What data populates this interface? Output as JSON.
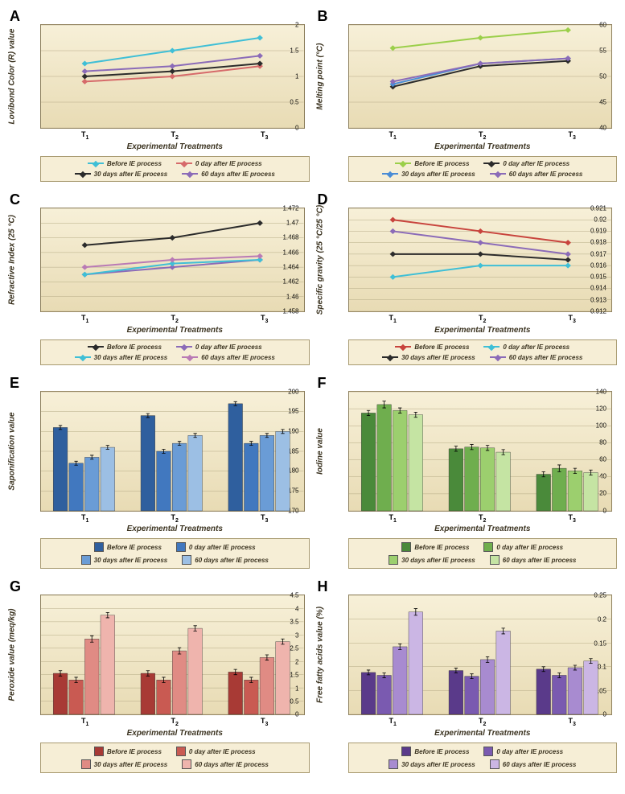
{
  "panels": {
    "A": {
      "label": "A",
      "type": "line",
      "ylabel": "Lovibond Color (R) value",
      "xlabel": "Experimental Treatments",
      "ylim": [
        0,
        2
      ],
      "yticks": [
        0,
        0.5,
        1,
        1.5,
        2
      ],
      "categories": [
        "T₁",
        "T₂",
        "T₃"
      ],
      "series": [
        {
          "name": "Before IE process",
          "color": "#3fbfd6",
          "marker": "x",
          "values": [
            1.25,
            1.5,
            1.75
          ]
        },
        {
          "name": "0 day after IE process",
          "color": "#d66a6a",
          "marker": "square",
          "values": [
            0.9,
            1.0,
            1.2
          ]
        },
        {
          "name": "30 days after IE process",
          "color": "#2b2b2b",
          "marker": "square",
          "values": [
            1.0,
            1.1,
            1.25
          ]
        },
        {
          "name": "60 days after IE process",
          "color": "#8b6bb8",
          "marker": "x",
          "values": [
            1.1,
            1.2,
            1.4
          ]
        }
      ]
    },
    "B": {
      "label": "B",
      "type": "line",
      "ylabel": "Melting point (°C)",
      "xlabel": "Experimental Treatments",
      "ylim": [
        40,
        60
      ],
      "yticks": [
        40,
        45,
        50,
        55,
        60
      ],
      "categories": [
        "T₁",
        "T₂",
        "T₃"
      ],
      "series": [
        {
          "name": "Before IE process",
          "color": "#9bcf4a",
          "marker": "diamond",
          "values": [
            55.5,
            57.5,
            59.0
          ]
        },
        {
          "name": "0 day after IE process",
          "color": "#2b2b2b",
          "marker": "square",
          "values": [
            48.0,
            52.0,
            53.0
          ]
        },
        {
          "name": "30 days after IE process",
          "color": "#4a8cd6",
          "marker": "x",
          "values": [
            48.5,
            52.5,
            53.5
          ]
        },
        {
          "name": "60 days after IE process",
          "color": "#8b6bb8",
          "marker": "x",
          "values": [
            49.0,
            52.5,
            53.5
          ]
        }
      ]
    },
    "C": {
      "label": "C",
      "type": "line",
      "ylabel": "Refractive Index (25 °C)",
      "xlabel": "Experimental Treatments",
      "ylim": [
        1.458,
        1.472
      ],
      "yticks": [
        1.458,
        1.46,
        1.462,
        1.464,
        1.466,
        1.468,
        1.47,
        1.472
      ],
      "categories": [
        "T₁",
        "T₂",
        "T₃"
      ],
      "series": [
        {
          "name": "Before IE process",
          "color": "#2b2b2b",
          "marker": "x",
          "values": [
            1.467,
            1.468,
            1.47
          ]
        },
        {
          "name": "0 day after IE process",
          "color": "#8b6bb8",
          "marker": "square",
          "values": [
            1.463,
            1.464,
            1.465
          ]
        },
        {
          "name": "30 days after IE process",
          "color": "#3fbfd6",
          "marker": "x",
          "values": [
            1.463,
            1.4645,
            1.465
          ]
        },
        {
          "name": "60 days after IE process",
          "color": "#b97ab5",
          "marker": "x",
          "values": [
            1.464,
            1.465,
            1.4655
          ]
        }
      ]
    },
    "D": {
      "label": "D",
      "type": "line",
      "ylabel": "Specific gravity (25 °C/25 °C)",
      "xlabel": "Experimental Treatments",
      "ylim": [
        0.912,
        0.921
      ],
      "yticks": [
        0.912,
        0.913,
        0.914,
        0.915,
        0.916,
        0.917,
        0.918,
        0.919,
        0.92,
        0.921
      ],
      "categories": [
        "T₁",
        "T₂",
        "T₃"
      ],
      "series": [
        {
          "name": "Before IE process",
          "color": "#c8443d",
          "marker": "diamond",
          "values": [
            0.92,
            0.919,
            0.918
          ]
        },
        {
          "name": "0 day after IE process",
          "color": "#3fbfd6",
          "marker": "x",
          "values": [
            0.915,
            0.916,
            0.916
          ]
        },
        {
          "name": "30 days after IE process",
          "color": "#2b2b2b",
          "marker": "triangle",
          "values": [
            0.917,
            0.917,
            0.9165
          ]
        },
        {
          "name": "60 days after IE process",
          "color": "#8b6bb8",
          "marker": "x",
          "values": [
            0.919,
            0.918,
            0.917
          ]
        }
      ]
    },
    "E": {
      "label": "E",
      "type": "bar",
      "ylabel": "Saponification value",
      "xlabel": "Experimental Treatments",
      "ylim": [
        170,
        200
      ],
      "yticks": [
        170,
        175,
        180,
        185,
        190,
        195,
        200
      ],
      "categories": [
        "T₁",
        "T₂",
        "T₃"
      ],
      "colors": [
        "#2f5f9e",
        "#4178bf",
        "#6a9cd6",
        "#9cbfe4"
      ],
      "legend": [
        "Before IE process",
        "0 day after IE process",
        "30 days after IE process",
        "60 days after IE process"
      ],
      "groups": [
        [
          191,
          182,
          183.5,
          186
        ],
        [
          194,
          185,
          187,
          189
        ],
        [
          197,
          187,
          189,
          190
        ]
      ],
      "errors": [
        [
          0.5,
          0.5,
          0.5,
          0.5
        ],
        [
          0.5,
          0.5,
          0.5,
          0.5
        ],
        [
          0.5,
          0.5,
          0.5,
          0.5
        ]
      ]
    },
    "F": {
      "label": "F",
      "type": "bar",
      "ylabel": "Iodine value",
      "xlabel": "Experimental Treatments",
      "ylim": [
        0,
        140
      ],
      "yticks": [
        0,
        20,
        40,
        60,
        80,
        100,
        120,
        140
      ],
      "categories": [
        "T₁",
        "T₂",
        "T₃"
      ],
      "colors": [
        "#4a8a3a",
        "#6fae4e",
        "#9ccf6e",
        "#c5e4a3"
      ],
      "legend": [
        "Before IE process",
        "0 day after IE process",
        "30 days after IE process",
        "60 days after IE process"
      ],
      "groups": [
        [
          115,
          125,
          118,
          113
        ],
        [
          73,
          75,
          74,
          69
        ],
        [
          43,
          50,
          47,
          45
        ]
      ],
      "errors": [
        [
          3,
          4,
          3,
          3
        ],
        [
          3,
          3,
          3,
          3
        ],
        [
          3,
          4,
          3,
          3
        ]
      ]
    },
    "G": {
      "label": "G",
      "type": "bar",
      "ylabel": "Peroxide value (meq/kg)",
      "xlabel": "Experimental Treatments",
      "ylim": [
        0,
        4.5
      ],
      "yticks": [
        0,
        0.5,
        1,
        1.5,
        2,
        2.5,
        3,
        3.5,
        4,
        4.5
      ],
      "categories": [
        "T₁",
        "T₂",
        "T₃"
      ],
      "colors": [
        "#a83a35",
        "#c95a52",
        "#e08b84",
        "#efb4ad"
      ],
      "legend": [
        "Before IE process",
        "0 day after IE process",
        "30 days after IE process",
        "60 days after IE process"
      ],
      "groups": [
        [
          1.55,
          1.3,
          2.85,
          3.75
        ],
        [
          1.55,
          1.3,
          2.4,
          3.25
        ],
        [
          1.6,
          1.3,
          2.15,
          2.75
        ]
      ],
      "errors": [
        [
          0.1,
          0.1,
          0.12,
          0.1
        ],
        [
          0.1,
          0.1,
          0.12,
          0.1
        ],
        [
          0.1,
          0.1,
          0.1,
          0.1
        ]
      ]
    },
    "H": {
      "label": "H",
      "type": "bar",
      "ylabel": "Free fatty acids value (%)",
      "xlabel": "Experimental Treatments",
      "ylim": [
        0,
        0.25
      ],
      "yticks": [
        0,
        0.05,
        0.1,
        0.15,
        0.2,
        0.25
      ],
      "categories": [
        "T₁",
        "T₂",
        "T₃"
      ],
      "colors": [
        "#5a3a8a",
        "#7a5ab0",
        "#a88bd0",
        "#cbb6e4"
      ],
      "legend": [
        "Before IE process",
        "0 day after IE process",
        "30 days after IE process",
        "60 days after IE process"
      ],
      "groups": [
        [
          0.088,
          0.082,
          0.142,
          0.215
        ],
        [
          0.092,
          0.08,
          0.115,
          0.175
        ],
        [
          0.095,
          0.082,
          0.098,
          0.112
        ]
      ],
      "errors": [
        [
          0.005,
          0.005,
          0.006,
          0.007
        ],
        [
          0.005,
          0.005,
          0.006,
          0.006
        ],
        [
          0.005,
          0.005,
          0.005,
          0.005
        ]
      ]
    }
  },
  "xTickLabels": [
    "T<sub>1</sub>",
    "T<sub>2</sub>",
    "T<sub>3</sub>"
  ],
  "style": {
    "label_fontsize": 10,
    "tick_fontsize": 8,
    "legend_fontsize": 8,
    "panel_bg_top": "#f7f0d8",
    "panel_bg_bottom": "#e8dbb4",
    "panel_border": "#8b7d5a",
    "grid_color": "#b5aa85",
    "bar_width": 0.18,
    "line_width": 2,
    "marker_size": 5
  }
}
